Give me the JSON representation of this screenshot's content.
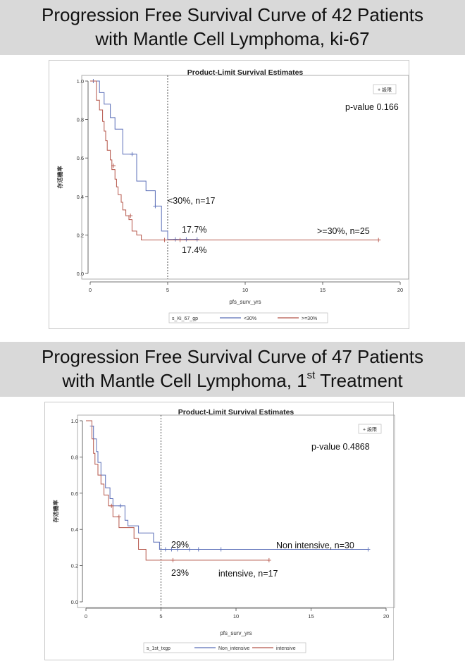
{
  "banners": [
    {
      "line1": "Progression Free Survival Curve of 42 Patients",
      "line2": "with Mantle Cell Lymphoma, ki-67",
      "sup": "",
      "tail": ""
    },
    {
      "line1": "Progression Free Survival Curve of 47 Patients",
      "line2": "with Mantle Cell Lymphoma, 1",
      "sup": "st",
      "tail": " Treatment"
    }
  ],
  "chart_data": [
    {
      "type": "line",
      "title": "Product-Limit Survival Estimates",
      "xlabel": "pfs_surv_yrs",
      "ylabel": "存活機率",
      "xlim": [
        0,
        20
      ],
      "ylim": [
        0,
        1
      ],
      "xticks": [
        0,
        5,
        10,
        15,
        20
      ],
      "yticks": [
        0.0,
        0.2,
        0.4,
        0.6,
        0.8,
        1.0
      ],
      "ref_line_x": 5,
      "censor_legend": "+ 設限",
      "legend_title": "s_Ki_67_gp",
      "annotations": {
        "pvalue": "p-value 0.166",
        "a1": "<30%, n=17",
        "a2": "17.7%",
        "a3": "17.4%",
        "a4": ">=30%, n=25"
      },
      "series": [
        {
          "name": "<30%",
          "color": "#5b6fb8",
          "x": [
            0,
            0.6,
            0.6,
            0.9,
            0.9,
            1.3,
            1.3,
            1.6,
            1.6,
            2.1,
            2.1,
            3.0,
            3.0,
            3.6,
            3.6,
            4.2,
            4.2,
            4.6,
            4.6,
            5.0,
            5.0,
            6.9
          ],
          "y": [
            1.0,
            1.0,
            0.94,
            0.94,
            0.88,
            0.88,
            0.81,
            0.81,
            0.75,
            0.75,
            0.62,
            0.62,
            0.48,
            0.48,
            0.43,
            0.43,
            0.35,
            0.35,
            0.22,
            0.22,
            0.177,
            0.177
          ],
          "censor_x": [
            0.2,
            2.7,
            4.2,
            5.5,
            6.2,
            6.9
          ],
          "censor_y": [
            1.0,
            0.62,
            0.35,
            0.177,
            0.177,
            0.177
          ]
        },
        {
          "name": ">=30%",
          "color": "#b5564a",
          "x": [
            0,
            0.4,
            0.4,
            0.6,
            0.6,
            0.8,
            0.8,
            0.9,
            0.9,
            1.0,
            1.0,
            1.1,
            1.1,
            1.3,
            1.3,
            1.4,
            1.4,
            1.6,
            1.6,
            1.7,
            1.7,
            1.8,
            1.8,
            2.0,
            2.0,
            2.1,
            2.1,
            2.3,
            2.3,
            2.5,
            2.5,
            2.7,
            2.7,
            3.0,
            3.0,
            3.3,
            3.3,
            18.6
          ],
          "y": [
            1.0,
            1.0,
            0.9,
            0.9,
            0.85,
            0.85,
            0.79,
            0.79,
            0.74,
            0.74,
            0.69,
            0.69,
            0.64,
            0.64,
            0.59,
            0.59,
            0.54,
            0.54,
            0.49,
            0.49,
            0.45,
            0.45,
            0.41,
            0.41,
            0.37,
            0.37,
            0.33,
            0.33,
            0.3,
            0.3,
            0.28,
            0.28,
            0.22,
            0.22,
            0.2,
            0.2,
            0.174,
            0.174
          ],
          "censor_x": [
            1.5,
            2.6,
            4.8,
            5.8,
            18.6
          ],
          "censor_y": [
            0.56,
            0.3,
            0.174,
            0.174,
            0.174
          ]
        }
      ]
    },
    {
      "type": "line",
      "title": "Product-Limit Survival Estimates",
      "xlabel": "pfs_surv_yrs",
      "ylabel": "存活機率",
      "xlim": [
        0,
        20
      ],
      "ylim": [
        0,
        1
      ],
      "xticks": [
        0,
        5,
        10,
        15,
        20
      ],
      "yticks": [
        0.0,
        0.2,
        0.4,
        0.6,
        0.8,
        1.0
      ],
      "ref_line_x": 5,
      "censor_legend": "+ 設限",
      "legend_title": "s_1st_txgp",
      "annotations": {
        "pvalue": "p-value 0.4868",
        "a1": "29%",
        "a2": "23%",
        "a3": "Non intensive, n=30",
        "a4": "intensive, n=17"
      },
      "series": [
        {
          "name": "Non_intensive",
          "color": "#5b6fb8",
          "x": [
            0,
            0.4,
            0.4,
            0.5,
            0.5,
            0.7,
            0.7,
            0.8,
            0.8,
            1.0,
            1.0,
            1.3,
            1.3,
            1.6,
            1.6,
            1.8,
            1.8,
            2.0,
            2.0,
            2.6,
            2.6,
            2.8,
            2.8,
            3.5,
            3.5,
            4.5,
            4.5,
            4.9,
            4.9,
            18.8
          ],
          "y": [
            1.0,
            1.0,
            0.97,
            0.97,
            0.9,
            0.9,
            0.83,
            0.83,
            0.77,
            0.77,
            0.7,
            0.7,
            0.63,
            0.63,
            0.57,
            0.57,
            0.53,
            0.53,
            0.53,
            0.53,
            0.45,
            0.45,
            0.42,
            0.42,
            0.38,
            0.38,
            0.33,
            0.33,
            0.29,
            0.29
          ],
          "censor_x": [
            0.4,
            2.3,
            5.3,
            5.7,
            6.1,
            6.9,
            7.5,
            9.0,
            18.8
          ],
          "censor_y": [
            0.97,
            0.53,
            0.29,
            0.29,
            0.29,
            0.29,
            0.29,
            0.29,
            0.29
          ]
        },
        {
          "name": "intensive",
          "color": "#b5564a",
          "x": [
            0,
            0.4,
            0.4,
            0.5,
            0.5,
            0.6,
            0.6,
            0.8,
            0.8,
            1.0,
            1.0,
            1.2,
            1.2,
            1.5,
            1.5,
            1.8,
            1.8,
            2.2,
            2.2,
            3.2,
            3.2,
            3.5,
            3.5,
            4.0,
            4.0,
            12.2
          ],
          "y": [
            1.0,
            1.0,
            0.9,
            0.9,
            0.82,
            0.82,
            0.76,
            0.76,
            0.7,
            0.7,
            0.65,
            0.65,
            0.59,
            0.59,
            0.53,
            0.53,
            0.47,
            0.47,
            0.41,
            0.41,
            0.35,
            0.35,
            0.29,
            0.29,
            0.23,
            0.23
          ],
          "censor_x": [
            1.7,
            2.2,
            5.8,
            12.2
          ],
          "censor_y": [
            0.53,
            0.47,
            0.23,
            0.23
          ]
        }
      ]
    }
  ]
}
